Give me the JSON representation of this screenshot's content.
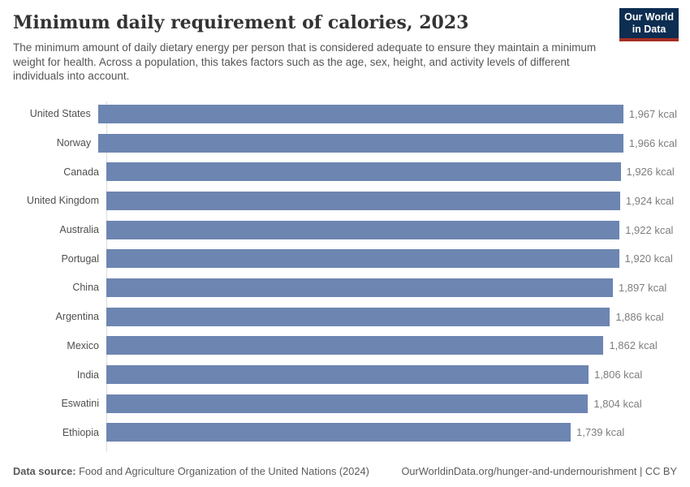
{
  "header": {
    "title": "Minimum daily requirement of calories, 2023",
    "subtitle": "The minimum amount of daily dietary energy per person that is considered adequate to ensure they maintain a minimum weight for health. Across a population, this takes factors such as the age, sex, height, and activity levels of different individuals into account.",
    "logo": {
      "line1": "Our World",
      "line2": "in Data",
      "background_color": "#0d2d51",
      "stripe_color": "#a52e25"
    }
  },
  "chart_data": {
    "type": "bar",
    "orientation": "horizontal",
    "title": "Minimum daily requirement of calories, 2023",
    "unit": "kcal",
    "categories": [
      "United States",
      "Norway",
      "Canada",
      "United Kingdom",
      "Australia",
      "Portugal",
      "China",
      "Argentina",
      "Mexico",
      "India",
      "Eswatini",
      "Ethiopia"
    ],
    "values": [
      1967,
      1966,
      1926,
      1924,
      1922,
      1920,
      1897,
      1886,
      1862,
      1806,
      1804,
      1739
    ],
    "value_labels": [
      "1,967 kcal",
      "1,966 kcal",
      "1,926 kcal",
      "1,924 kcal",
      "1,922 kcal",
      "1,920 kcal",
      "1,897 kcal",
      "1,886 kcal",
      "1,862 kcal",
      "1,806 kcal",
      "1,804 kcal",
      "1,739 kcal"
    ],
    "xlim": [
      0,
      1967
    ],
    "grid": false,
    "legend": "none",
    "bar_color": "#6d85b1",
    "axis_line_color": "#dcdcdc"
  },
  "footer": {
    "source_label": "Data source:",
    "source_text": " Food and Agriculture Organization of the United Nations (2024)",
    "url": "OurWorldinData.org/hunger-and-undernourishment",
    "separator": " | ",
    "license": "CC BY"
  }
}
